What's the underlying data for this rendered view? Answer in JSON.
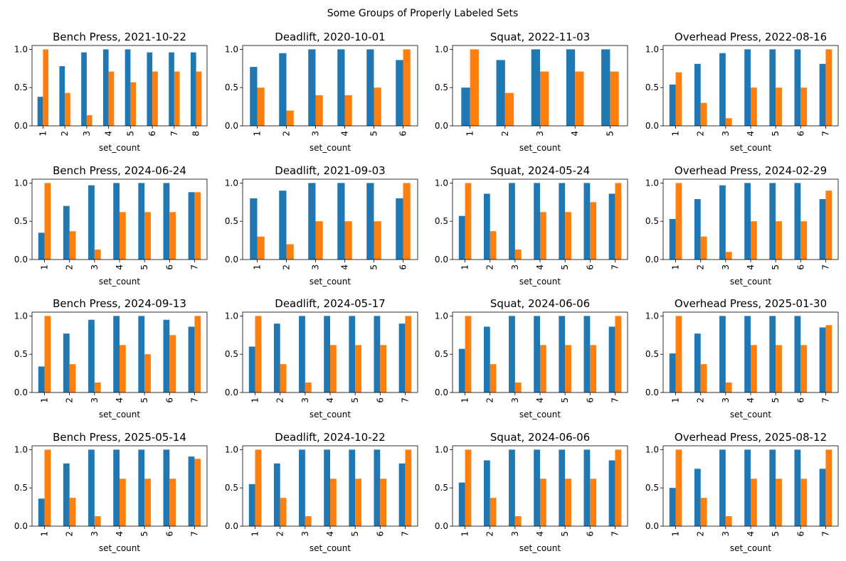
{
  "figure": {
    "title": "Some Groups of Properly Labeled Sets"
  },
  "colors": {
    "series_1": "#1f77b4",
    "series_2": "#ff7f0e"
  },
  "chart_data": [
    {
      "type": "bar",
      "title": "Bench Press, 2021-10-22",
      "xlabel": "set_count",
      "ylabel": "",
      "ylim": [
        0,
        1.05
      ],
      "yticks": [
        "0.0",
        "0.5",
        "1.0"
      ],
      "categories": [
        "1",
        "2",
        "3",
        "4",
        "5",
        "6",
        "7",
        "8"
      ],
      "series": [
        {
          "values": [
            0.38,
            0.78,
            0.96,
            1.0,
            1.0,
            0.96,
            0.96,
            0.96
          ]
        },
        {
          "values": [
            1.0,
            0.43,
            0.14,
            0.71,
            0.57,
            0.71,
            0.71,
            0.71
          ]
        }
      ]
    },
    {
      "type": "bar",
      "title": "Deadlift, 2020-10-01",
      "xlabel": "set_count",
      "ylabel": "",
      "ylim": [
        0,
        1.05
      ],
      "yticks": [
        "0.0",
        "0.5",
        "1.0"
      ],
      "categories": [
        "1",
        "2",
        "3",
        "4",
        "5",
        "6"
      ],
      "series": [
        {
          "values": [
            0.77,
            0.95,
            1.0,
            1.0,
            1.0,
            0.86
          ]
        },
        {
          "values": [
            0.5,
            0.2,
            0.4,
            0.4,
            0.5,
            1.0
          ]
        }
      ]
    },
    {
      "type": "bar",
      "title": "Squat, 2022-11-03",
      "xlabel": "set_count",
      "ylabel": "",
      "ylim": [
        0,
        1.05
      ],
      "yticks": [
        "0.0",
        "0.5",
        "1.0"
      ],
      "categories": [
        "1",
        "2",
        "3",
        "4",
        "5"
      ],
      "series": [
        {
          "values": [
            0.5,
            0.86,
            1.0,
            1.0,
            1.0
          ]
        },
        {
          "values": [
            1.0,
            0.43,
            0.71,
            0.71,
            0.71
          ]
        }
      ]
    },
    {
      "type": "bar",
      "title": "Overhead Press, 2022-08-16",
      "xlabel": "set_count",
      "ylabel": "",
      "ylim": [
        0,
        1.05
      ],
      "yticks": [
        "0.0",
        "0.5",
        "1.0"
      ],
      "categories": [
        "1",
        "2",
        "3",
        "4",
        "5",
        "6",
        "7"
      ],
      "series": [
        {
          "values": [
            0.54,
            0.81,
            0.95,
            1.0,
            1.0,
            1.0,
            0.81
          ]
        },
        {
          "values": [
            0.7,
            0.3,
            0.1,
            0.5,
            0.5,
            0.5,
            1.0
          ]
        }
      ]
    },
    {
      "type": "bar",
      "title": "Bench Press, 2024-06-24",
      "xlabel": "set_count",
      "ylabel": "",
      "ylim": [
        0,
        1.05
      ],
      "yticks": [
        "0.0",
        "0.5",
        "1.0"
      ],
      "categories": [
        "1",
        "2",
        "3",
        "4",
        "5",
        "6",
        "7"
      ],
      "series": [
        {
          "values": [
            0.35,
            0.7,
            0.97,
            1.0,
            1.0,
            1.0,
            0.88
          ]
        },
        {
          "values": [
            1.0,
            0.37,
            0.13,
            0.62,
            0.62,
            0.62,
            0.88
          ]
        }
      ]
    },
    {
      "type": "bar",
      "title": "Deadlift, 2021-09-03",
      "xlabel": "set_count",
      "ylabel": "",
      "ylim": [
        0,
        1.05
      ],
      "yticks": [
        "0.0",
        "0.5",
        "1.0"
      ],
      "categories": [
        "1",
        "2",
        "3",
        "4",
        "5",
        "6"
      ],
      "series": [
        {
          "values": [
            0.8,
            0.9,
            1.0,
            1.0,
            1.0,
            0.8
          ]
        },
        {
          "values": [
            0.3,
            0.2,
            0.5,
            0.5,
            0.5,
            1.0
          ]
        }
      ]
    },
    {
      "type": "bar",
      "title": "Squat, 2024-05-24",
      "xlabel": "set_count",
      "ylabel": "",
      "ylim": [
        0,
        1.05
      ],
      "yticks": [
        "0.0",
        "0.5",
        "1.0"
      ],
      "categories": [
        "1",
        "2",
        "3",
        "4",
        "5",
        "6",
        "7"
      ],
      "series": [
        {
          "values": [
            0.57,
            0.86,
            1.0,
            1.0,
            1.0,
            1.0,
            0.86
          ]
        },
        {
          "values": [
            1.0,
            0.37,
            0.13,
            0.62,
            0.62,
            0.75,
            1.0
          ]
        }
      ]
    },
    {
      "type": "bar",
      "title": "Overhead Press, 2024-02-29",
      "xlabel": "set_count",
      "ylabel": "",
      "ylim": [
        0,
        1.05
      ],
      "yticks": [
        "0.0",
        "0.5",
        "1.0"
      ],
      "categories": [
        "1",
        "2",
        "3",
        "4",
        "5",
        "6",
        "7"
      ],
      "series": [
        {
          "values": [
            0.53,
            0.79,
            0.97,
            1.0,
            1.0,
            1.0,
            0.79
          ]
        },
        {
          "values": [
            1.0,
            0.3,
            0.1,
            0.5,
            0.5,
            0.5,
            0.9
          ]
        }
      ]
    },
    {
      "type": "bar",
      "title": "Bench Press, 2024-09-13",
      "xlabel": "set_count",
      "ylabel": "",
      "ylim": [
        0,
        1.05
      ],
      "yticks": [
        "0.0",
        "0.5",
        "1.0"
      ],
      "categories": [
        "1",
        "2",
        "3",
        "4",
        "5",
        "6",
        "7"
      ],
      "series": [
        {
          "values": [
            0.34,
            0.77,
            0.95,
            1.0,
            1.0,
            0.95,
            0.86
          ]
        },
        {
          "values": [
            1.0,
            0.37,
            0.13,
            0.62,
            0.5,
            0.75,
            1.0
          ]
        }
      ]
    },
    {
      "type": "bar",
      "title": "Deadlift, 2024-05-17",
      "xlabel": "set_count",
      "ylabel": "",
      "ylim": [
        0,
        1.05
      ],
      "yticks": [
        "0.0",
        "0.5",
        "1.0"
      ],
      "categories": [
        "1",
        "2",
        "3",
        "4",
        "5",
        "6",
        "7"
      ],
      "series": [
        {
          "values": [
            0.6,
            0.9,
            1.0,
            1.0,
            1.0,
            1.0,
            0.9
          ]
        },
        {
          "values": [
            1.0,
            0.37,
            0.13,
            0.62,
            0.62,
            0.62,
            1.0
          ]
        }
      ]
    },
    {
      "type": "bar",
      "title": "Squat, 2024-06-06",
      "xlabel": "set_count",
      "ylabel": "",
      "ylim": [
        0,
        1.05
      ],
      "yticks": [
        "0.0",
        "0.5",
        "1.0"
      ],
      "categories": [
        "1",
        "2",
        "3",
        "4",
        "5",
        "6",
        "7"
      ],
      "series": [
        {
          "values": [
            0.57,
            0.86,
            1.0,
            1.0,
            1.0,
            1.0,
            0.86
          ]
        },
        {
          "values": [
            1.0,
            0.37,
            0.13,
            0.62,
            0.62,
            0.62,
            1.0
          ]
        }
      ]
    },
    {
      "type": "bar",
      "title": "Overhead Press, 2025-01-30",
      "xlabel": "set_count",
      "ylabel": "",
      "ylim": [
        0,
        1.05
      ],
      "yticks": [
        "0.0",
        "0.5",
        "1.0"
      ],
      "categories": [
        "1",
        "2",
        "3",
        "4",
        "5",
        "6",
        "7"
      ],
      "series": [
        {
          "values": [
            0.51,
            0.77,
            1.0,
            1.0,
            1.0,
            1.0,
            0.85
          ]
        },
        {
          "values": [
            1.0,
            0.37,
            0.13,
            0.62,
            0.62,
            0.62,
            0.88
          ]
        }
      ]
    },
    {
      "type": "bar",
      "title": "Bench Press, 2025-05-14",
      "xlabel": "set_count",
      "ylabel": "",
      "ylim": [
        0,
        1.05
      ],
      "yticks": [
        "0.0",
        "0.5",
        "1.0"
      ],
      "categories": [
        "1",
        "2",
        "3",
        "4",
        "5",
        "6",
        "7"
      ],
      "series": [
        {
          "values": [
            0.36,
            0.82,
            1.0,
            1.0,
            1.0,
            1.0,
            0.91
          ]
        },
        {
          "values": [
            1.0,
            0.37,
            0.13,
            0.62,
            0.62,
            0.62,
            0.88
          ]
        }
      ]
    },
    {
      "type": "bar",
      "title": "Deadlift, 2024-10-22",
      "xlabel": "set_count",
      "ylabel": "",
      "ylim": [
        0,
        1.05
      ],
      "yticks": [
        "0.0",
        "0.5",
        "1.0"
      ],
      "categories": [
        "1",
        "2",
        "3",
        "4",
        "5",
        "6",
        "7"
      ],
      "series": [
        {
          "values": [
            0.55,
            0.82,
            1.0,
            1.0,
            1.0,
            1.0,
            0.82
          ]
        },
        {
          "values": [
            1.0,
            0.37,
            0.13,
            0.62,
            0.62,
            0.62,
            1.0
          ]
        }
      ]
    },
    {
      "type": "bar",
      "title": "Squat, 2024-06-06",
      "xlabel": "set_count",
      "ylabel": "",
      "ylim": [
        0,
        1.05
      ],
      "yticks": [
        "0.0",
        "0.5",
        "1.0"
      ],
      "categories": [
        "1",
        "2",
        "3",
        "4",
        "5",
        "6",
        "7"
      ],
      "series": [
        {
          "values": [
            0.57,
            0.86,
            1.0,
            1.0,
            1.0,
            1.0,
            0.86
          ]
        },
        {
          "values": [
            1.0,
            0.37,
            0.13,
            0.62,
            0.62,
            0.62,
            1.0
          ]
        }
      ]
    },
    {
      "type": "bar",
      "title": "Overhead Press, 2025-08-12",
      "xlabel": "set_count",
      "ylabel": "",
      "ylim": [
        0,
        1.05
      ],
      "yticks": [
        "0.0",
        "0.5",
        "1.0"
      ],
      "categories": [
        "1",
        "2",
        "3",
        "4",
        "5",
        "6",
        "7"
      ],
      "series": [
        {
          "values": [
            0.5,
            0.75,
            1.0,
            1.0,
            1.0,
            1.0,
            0.75
          ]
        },
        {
          "values": [
            1.0,
            0.37,
            0.13,
            0.62,
            0.62,
            0.62,
            1.0
          ]
        }
      ]
    }
  ]
}
